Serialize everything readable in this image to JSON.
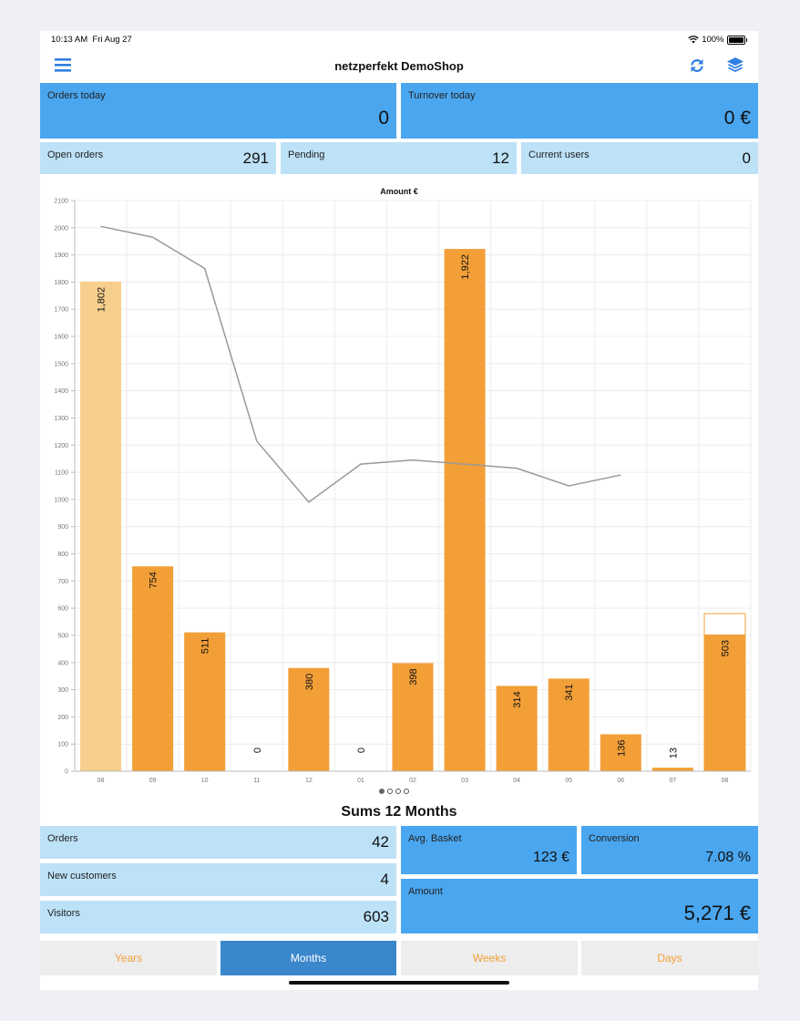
{
  "status": {
    "time": "10:13 AM",
    "date": "Fri Aug 27",
    "battery": "100%"
  },
  "nav": {
    "title": "netzperfekt DemoShop",
    "menu_icon": "hamburger-icon",
    "refresh_icon": "refresh-icon",
    "layers_icon": "layers-icon"
  },
  "top_stats": {
    "orders_today": {
      "label": "Orders today",
      "value": "0"
    },
    "turnover_today": {
      "label": "Turnover today",
      "value": "0 €"
    },
    "open_orders": {
      "label": "Open orders",
      "value": "291"
    },
    "pending": {
      "label": "Pending",
      "value": "12"
    },
    "current_users": {
      "label": "Current users",
      "value": "0"
    }
  },
  "chart_data": {
    "type": "bar",
    "title": "Amount €",
    "categories": [
      "08",
      "09",
      "10",
      "11",
      "12",
      "01",
      "02",
      "03",
      "04",
      "05",
      "06",
      "07",
      "08"
    ],
    "values": [
      1802,
      754,
      511,
      0,
      380,
      0,
      398,
      1922,
      314,
      341,
      136,
      13,
      503
    ],
    "value_labels": [
      "1,802",
      "754",
      "511",
      "0",
      "380",
      "0",
      "398",
      "1,922",
      "314",
      "341",
      "136",
      "13",
      "503"
    ],
    "projected_last": 580,
    "line": [
      2005,
      1965,
      1850,
      1215,
      990,
      1130,
      1145,
      1130,
      1115,
      1050,
      1090
    ],
    "ylim": [
      0,
      2100
    ],
    "yticks": [
      0,
      100,
      200,
      300,
      400,
      500,
      600,
      700,
      800,
      900,
      1000,
      1100,
      1200,
      1300,
      1400,
      1500,
      1600,
      1700,
      1800,
      1900,
      2000,
      2100
    ],
    "grid": true,
    "colors": {
      "bar": "#f29f38",
      "bar_first": "#f7cf8c",
      "line": "#9a9a9a",
      "projection": "#f29f38"
    }
  },
  "pager": {
    "pages": 4,
    "active": 0
  },
  "sums": {
    "title": "Sums 12 Months",
    "orders": {
      "label": "Orders",
      "value": "42"
    },
    "new_customers": {
      "label": "New customers",
      "value": "4"
    },
    "visitors": {
      "label": "Visitors",
      "value": "603"
    },
    "avg_basket": {
      "label": "Avg. Basket",
      "value": "123 €"
    },
    "conversion": {
      "label": "Conversion",
      "value": "7.08 %"
    },
    "amount": {
      "label": "Amount",
      "value": "5,271 €"
    }
  },
  "periods": {
    "years": "Years",
    "months": "Months",
    "weeks": "Weeks",
    "days": "Days",
    "active": "months"
  },
  "colors": {
    "tile_dark": "#4aa6ef",
    "tile_light": "#bde2f8",
    "accent_orange": "#f2a13a",
    "segment_active": "#3a87cc",
    "nav_icon": "#2f7fe0"
  }
}
